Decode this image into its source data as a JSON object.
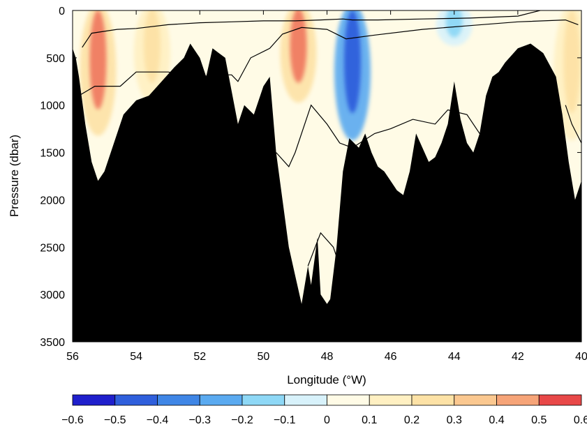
{
  "chart_data": {
    "type": "heatmap",
    "title": "",
    "xlabel": "Longitude (°W)",
    "ylabel": "Pressure (dbar)",
    "xlim": [
      56,
      40
    ],
    "ylim": [
      0,
      3500
    ],
    "x_ticks": [
      "56",
      "54",
      "52",
      "50",
      "48",
      "46",
      "44",
      "42",
      "40"
    ],
    "y_ticks": [
      "0",
      "500",
      "1000",
      "1500",
      "2000",
      "2500",
      "3000",
      "3500"
    ],
    "colorbar": {
      "ticks": [
        "−0.6",
        "−0.5",
        "−0.4",
        "−0.3",
        "−0.2",
        "−0.1",
        "0",
        "0.1",
        "0.2",
        "0.3",
        "0.4",
        "0.5",
        "0.6"
      ],
      "colors": [
        "#1f1fcc",
        "#2f5fdc",
        "#3f86e6",
        "#5aaaf0",
        "#8ed8f6",
        "#d8f2fb",
        "#fffbe6",
        "#fff0c2",
        "#fde2a6",
        "#fbc890",
        "#f6a478",
        "#f07c62",
        "#e84848"
      ]
    },
    "anomaly_cores": [
      {
        "lon": 55.2,
        "p_top": 0,
        "p_bottom": 1250,
        "value": 0.45
      },
      {
        "lon": 48.9,
        "p_top": 0,
        "p_bottom": 900,
        "value": 0.45
      },
      {
        "lon": 47.2,
        "p_top": 0,
        "p_bottom": 1300,
        "value": -0.5
      },
      {
        "lon": 53.5,
        "p_top": 0,
        "p_bottom": 900,
        "value": 0.15
      },
      {
        "lon": 44.0,
        "p_top": 0,
        "p_bottom": 300,
        "value": -0.2
      },
      {
        "lon": 40.3,
        "p_top": 0,
        "p_bottom": 1300,
        "value": 0.15
      }
    ],
    "bathymetry": [
      [
        56.0,
        400
      ],
      [
        55.9,
        500
      ],
      [
        55.8,
        700
      ],
      [
        55.6,
        1200
      ],
      [
        55.4,
        1600
      ],
      [
        55.2,
        1800
      ],
      [
        55.0,
        1700
      ],
      [
        54.8,
        1500
      ],
      [
        54.6,
        1300
      ],
      [
        54.4,
        1100
      ],
      [
        54.0,
        950
      ],
      [
        53.6,
        900
      ],
      [
        53.2,
        750
      ],
      [
        52.8,
        600
      ],
      [
        52.5,
        500
      ],
      [
        52.3,
        350
      ],
      [
        52.0,
        500
      ],
      [
        51.8,
        700
      ],
      [
        51.6,
        400
      ],
      [
        51.4,
        450
      ],
      [
        51.2,
        500
      ],
      [
        51.0,
        850
      ],
      [
        50.8,
        1200
      ],
      [
        50.6,
        1000
      ],
      [
        50.3,
        1100
      ],
      [
        50.0,
        800
      ],
      [
        49.8,
        700
      ],
      [
        49.6,
        1500
      ],
      [
        49.4,
        2000
      ],
      [
        49.2,
        2500
      ],
      [
        49.0,
        2800
      ],
      [
        48.8,
        3100
      ],
      [
        48.6,
        2700
      ],
      [
        48.5,
        2900
      ],
      [
        48.3,
        2400
      ],
      [
        48.2,
        3000
      ],
      [
        48.0,
        3100
      ],
      [
        47.9,
        3050
      ],
      [
        47.7,
        2500
      ],
      [
        47.5,
        1700
      ],
      [
        47.3,
        1350
      ],
      [
        47.0,
        1450
      ],
      [
        46.8,
        1300
      ],
      [
        46.6,
        1500
      ],
      [
        46.4,
        1650
      ],
      [
        46.2,
        1700
      ],
      [
        46.0,
        1800
      ],
      [
        45.8,
        1900
      ],
      [
        45.6,
        1950
      ],
      [
        45.4,
        1700
      ],
      [
        45.2,
        1300
      ],
      [
        45.0,
        1450
      ],
      [
        44.8,
        1600
      ],
      [
        44.6,
        1550
      ],
      [
        44.4,
        1400
      ],
      [
        44.2,
        1200
      ],
      [
        44.0,
        750
      ],
      [
        43.8,
        1150
      ],
      [
        43.6,
        1400
      ],
      [
        43.4,
        1500
      ],
      [
        43.2,
        1300
      ],
      [
        43.0,
        900
      ],
      [
        42.8,
        700
      ],
      [
        42.6,
        650
      ],
      [
        42.4,
        550
      ],
      [
        42.0,
        400
      ],
      [
        41.6,
        350
      ],
      [
        41.2,
        450
      ],
      [
        40.8,
        700
      ],
      [
        40.6,
        1100
      ],
      [
        40.4,
        1600
      ],
      [
        40.2,
        2000
      ],
      [
        40.0,
        1800
      ]
    ],
    "contours": [
      [
        [
          55.7,
          390
        ],
        [
          55.4,
          240
        ],
        [
          54.6,
          200
        ],
        [
          54.0,
          190
        ],
        [
          53.0,
          150
        ],
        [
          52.0,
          130
        ],
        [
          51.0,
          120
        ],
        [
          50.0,
          110
        ],
        [
          49.0,
          110
        ],
        [
          48.2,
          100
        ],
        [
          47.5,
          90
        ],
        [
          47.2,
          100
        ],
        [
          46.4,
          100
        ],
        [
          45.0,
          90
        ],
        [
          43.5,
          80
        ],
        [
          42.0,
          60
        ],
        [
          41.3,
          0
        ]
      ],
      [
        [
          55.8,
          900
        ],
        [
          55.3,
          800
        ],
        [
          54.5,
          800
        ],
        [
          54.0,
          650
        ],
        [
          53.0,
          650
        ],
        [
          52.0,
          700
        ],
        [
          51.5,
          680
        ],
        [
          51.0,
          680
        ],
        [
          50.8,
          750
        ],
        [
          50.4,
          500
        ],
        [
          49.8,
          400
        ],
        [
          49.4,
          250
        ],
        [
          48.8,
          180
        ],
        [
          48.0,
          200
        ],
        [
          47.4,
          300
        ],
        [
          46.5,
          260
        ],
        [
          45.0,
          200
        ],
        [
          43.5,
          160
        ],
        [
          42.0,
          120
        ],
        [
          40.5,
          100
        ],
        [
          40.1,
          150
        ]
      ],
      [
        [
          49.6,
          1500
        ],
        [
          49.2,
          1650
        ],
        [
          49.0,
          1500
        ],
        [
          48.5,
          1000
        ],
        [
          48.0,
          1200
        ],
        [
          47.6,
          1400
        ],
        [
          47.2,
          1450
        ],
        [
          46.5,
          1300
        ],
        [
          46.0,
          1250
        ],
        [
          45.3,
          1150
        ],
        [
          44.6,
          1200
        ],
        [
          44.2,
          1050
        ],
        [
          43.6,
          1100
        ],
        [
          43.2,
          1300
        ],
        [
          42.8,
          1400
        ]
      ],
      [
        [
          40.5,
          1000
        ],
        [
          40.3,
          1200
        ],
        [
          40.0,
          1400
        ]
      ],
      [
        [
          48.6,
          2700
        ],
        [
          48.2,
          2350
        ],
        [
          47.8,
          2500
        ],
        [
          47.6,
          2700
        ]
      ]
    ]
  }
}
